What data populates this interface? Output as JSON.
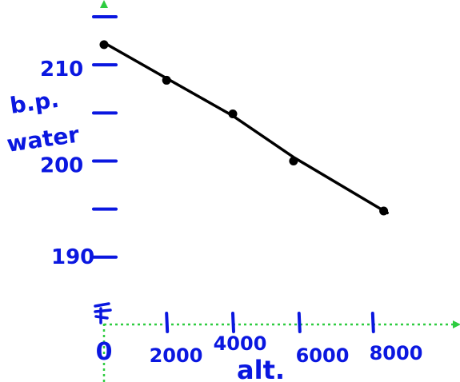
{
  "chart_data": {
    "type": "scatter",
    "xlabel": "alt.",
    "ylabel": "b.p. water",
    "x_ticks": [
      0,
      2000,
      4000,
      6000,
      8000
    ],
    "x_tick_labels": [
      "0",
      "2000",
      "4000",
      "6000",
      "8000"
    ],
    "y_tick_labels": [
      {
        "value": 210,
        "label": "210"
      },
      {
        "value": 200,
        "label": "200"
      },
      {
        "value": 190,
        "label": "190"
      }
    ],
    "y_tick_marks": [
      190,
      195,
      200,
      205,
      210,
      215
    ],
    "xlim": [
      0,
      10000
    ],
    "ylim": [
      183,
      216
    ],
    "x_axis_y_value": 183,
    "points": [
      {
        "x": 0,
        "y": 212.1
      },
      {
        "x": 1700,
        "y": 208.4
      },
      {
        "x": 3500,
        "y": 204.9
      },
      {
        "x": 5150,
        "y": 200.0
      },
      {
        "x": 7600,
        "y": 194.8
      }
    ],
    "fit_line": [
      {
        "x": 0,
        "y": 212.3
      },
      {
        "x": 1700,
        "y": 208.6
      },
      {
        "x": 3500,
        "y": 204.7
      },
      {
        "x": 5150,
        "y": 200.4
      },
      {
        "x": 7700,
        "y": 194.6
      }
    ],
    "grid": false,
    "colors": {
      "axis": "#2ecc40",
      "ink": "#0a17e0",
      "line": "#000000"
    }
  }
}
